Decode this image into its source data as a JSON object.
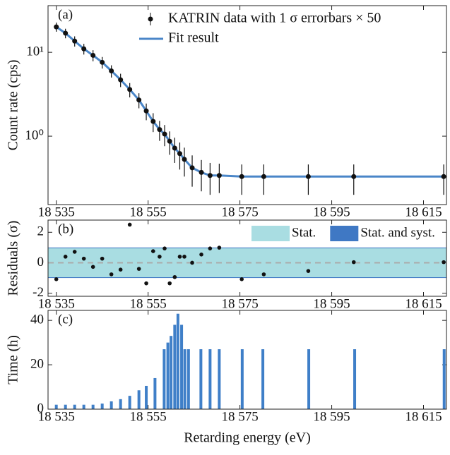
{
  "chart_data": [
    {
      "type": "errorbar",
      "panel_label": "(a)",
      "ylabel": "Count rate (cps)",
      "log_y": true,
      "legend": "upper right",
      "x": [
        18535,
        18537,
        18539,
        18541,
        18543,
        18545,
        18547,
        18549,
        18551,
        18553,
        18554.6,
        18556.1,
        18557.5,
        18558.6,
        18559.7,
        18560.8,
        18561.9,
        18562.9,
        18564.6,
        18566.6,
        18568.5,
        18570.5,
        18575.4,
        18580.2,
        18589.9,
        18599.8,
        18619.4
      ],
      "xlim": [
        18533.2,
        18620
      ],
      "xticks": [
        {
          "value": 18535,
          "label": "18 535"
        },
        {
          "value": 18555,
          "label": "18 555"
        },
        {
          "value": 18575,
          "label": "18 575"
        },
        {
          "value": 18595,
          "label": "18 595"
        },
        {
          "value": 18615,
          "label": "18 615"
        }
      ],
      "ylim": [
        0.153,
        36
      ],
      "yticks": [
        {
          "value": 1,
          "label": "10⁰"
        },
        {
          "value": 10,
          "label": "10¹"
        }
      ],
      "series": [
        {
          "name": "KATRIN data with 1 σ errorbars × 50",
          "color": "#111111",
          "values": [
            20.1,
            16.9,
            13.6,
            11.0,
            9.2,
            7.6,
            6.0,
            4.7,
            3.6,
            2.7,
            2.0,
            1.5,
            1.2,
            1.06,
            0.87,
            0.72,
            0.62,
            0.53,
            0.42,
            0.37,
            0.34,
            0.34,
            0.33,
            0.33,
            0.33,
            0.33,
            0.33
          ],
          "errors": [
            2.5,
            2.2,
            1.9,
            1.6,
            1.4,
            1.2,
            1.0,
            0.85,
            0.7,
            0.55,
            0.45,
            0.38,
            0.32,
            0.3,
            0.27,
            0.24,
            0.22,
            0.2,
            0.17,
            0.15,
            0.14,
            0.13,
            0.13,
            0.13,
            0.13,
            0.13,
            0.13
          ]
        },
        {
          "name": "Fit result",
          "color": "#4a86c8",
          "values": [
            20.1,
            16.9,
            13.6,
            11.0,
            9.2,
            7.6,
            6.0,
            4.7,
            3.6,
            2.7,
            2.0,
            1.5,
            1.2,
            1.06,
            0.87,
            0.72,
            0.62,
            0.53,
            0.42,
            0.37,
            0.34,
            0.34,
            0.33,
            0.33,
            0.33,
            0.33,
            0.33
          ]
        }
      ]
    },
    {
      "type": "residual",
      "panel_label": "(b)",
      "ylabel": "Residuals (σ)",
      "legend": "upper right",
      "color": "#111111",
      "x": [
        18535,
        18537,
        18539,
        18541,
        18543,
        18545,
        18547,
        18549,
        18551,
        18553,
        18554.6,
        18556.1,
        18557.5,
        18558.6,
        18559.7,
        18560.8,
        18561.9,
        18562.9,
        18564.6,
        18566.6,
        18568.5,
        18570.5,
        18575.4,
        18580.2,
        18589.9,
        18599.8,
        18619.4
      ],
      "values": [
        -1.08,
        0.4,
        0.72,
        0.27,
        -0.27,
        0.27,
        -0.76,
        -0.45,
        2.5,
        -0.4,
        -1.35,
        0.76,
        0.4,
        0.94,
        -1.35,
        -0.94,
        0.4,
        0.4,
        0,
        0.54,
        0.94,
        0.99,
        -1.08,
        -0.76,
        -0.54,
        0.04,
        0.04
      ],
      "bands": [
        {
          "name": "Stat.",
          "color": "#a9dde2",
          "range": [
            -0.95,
            0.95
          ]
        },
        {
          "name": "Stat. and syst.",
          "color": "#3f78c4",
          "range": [
            -1.0,
            1.0
          ]
        }
      ],
      "reference_line": 0,
      "xlim": [
        18533.2,
        18620
      ],
      "xticks": [
        {
          "value": 18535,
          "label": "18 535"
        },
        {
          "value": 18555,
          "label": "18 555"
        },
        {
          "value": 18575,
          "label": "18 575"
        },
        {
          "value": 18595,
          "label": "18 595"
        },
        {
          "value": 18615,
          "label": "18 615"
        }
      ],
      "ylim": [
        -2.2,
        2.8
      ],
      "yticks": [
        -2,
        0,
        2
      ]
    },
    {
      "type": "bar",
      "panel_label": "(c)",
      "ylabel": "Time (h)",
      "xlabel": "Retarding energy (eV)",
      "color": "#3f7fc8",
      "x": [
        18535,
        18537,
        18539,
        18541,
        18543,
        18545,
        18547,
        18549,
        18551,
        18553,
        18554.6,
        18556.5,
        18558.5,
        18559.3,
        18560,
        18560.8,
        18561.5,
        18562.3,
        18563,
        18563.8,
        18566.5,
        18568.5,
        18570.5,
        18575.5,
        18580,
        18590,
        18600,
        18619.5
      ],
      "values": [
        2,
        2,
        2,
        2,
        2,
        2.5,
        3.5,
        4.5,
        6,
        8.5,
        10.5,
        14,
        27,
        30,
        33,
        38,
        43,
        38,
        27,
        27,
        27,
        27,
        27,
        27,
        27,
        27,
        27,
        27
      ],
      "xlim": [
        18533.2,
        18620
      ],
      "xticks": [
        {
          "value": 18535,
          "label": "18 535"
        },
        {
          "value": 18555,
          "label": "18 555"
        },
        {
          "value": 18575,
          "label": "18 575"
        },
        {
          "value": 18595,
          "label": "18 595"
        },
        {
          "value": 18615,
          "label": "18 615"
        }
      ],
      "ylim": [
        0,
        44.5
      ],
      "yticks": [
        0,
        20,
        40
      ]
    }
  ]
}
